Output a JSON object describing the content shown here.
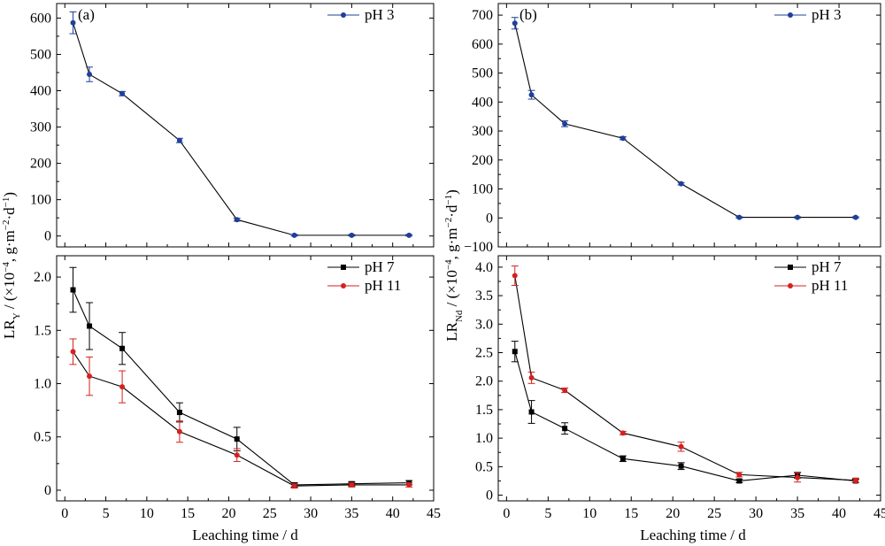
{
  "chart_data": [
    {
      "panel": "(a)",
      "type": "line",
      "x": [
        1,
        3,
        7,
        14,
        21,
        28,
        35,
        42
      ],
      "ylim": [
        -30,
        640
      ],
      "yticks": [
        0,
        100,
        200,
        300,
        400,
        500,
        600
      ],
      "ytick_labels": [
        "0",
        "100",
        "200",
        "300",
        "400",
        "500",
        "600"
      ],
      "series": [
        {
          "name": "pH 3",
          "color": "#1f3f99",
          "marker": "circle",
          "values": [
            587,
            445,
            392,
            263,
            45,
            2,
            2,
            2
          ],
          "errors": [
            30,
            20,
            6,
            6,
            4,
            2,
            2,
            2
          ]
        }
      ],
      "legend_position": "top-right"
    },
    {
      "panel": "(b)",
      "type": "line",
      "x": [
        1,
        3,
        7,
        14,
        21,
        28,
        35,
        42
      ],
      "ylim": [
        -100,
        740
      ],
      "yticks": [
        -100,
        0,
        100,
        200,
        300,
        400,
        500,
        600,
        700
      ],
      "ytick_labels": [
        "−100",
        "0",
        "100",
        "200",
        "300",
        "400",
        "500",
        "600",
        "700"
      ],
      "series": [
        {
          "name": "pH 3",
          "color": "#1f3f99",
          "marker": "circle",
          "values": [
            672,
            425,
            325,
            275,
            118,
            2,
            2,
            2
          ],
          "errors": [
            20,
            15,
            10,
            5,
            4,
            2,
            2,
            2
          ]
        }
      ],
      "legend_position": "top-right"
    },
    {
      "type": "line",
      "x": [
        1,
        3,
        7,
        14,
        21,
        28,
        35,
        42
      ],
      "ylim": [
        -0.1,
        2.2
      ],
      "yticks": [
        0,
        0.5,
        1.0,
        1.5,
        2.0
      ],
      "ytick_labels": [
        "0",
        "0.5",
        "1.0",
        "1.5",
        "2.0"
      ],
      "series": [
        {
          "name": "pH 7",
          "color": "#000000",
          "marker": "square",
          "values": [
            1.88,
            1.54,
            1.33,
            0.73,
            0.48,
            0.05,
            0.06,
            0.07
          ],
          "errors": [
            0.21,
            0.22,
            0.15,
            0.09,
            0.11,
            0.02,
            0.02,
            0.02
          ]
        },
        {
          "name": "pH 11",
          "color": "#d62020",
          "marker": "circle",
          "values": [
            1.3,
            1.07,
            0.97,
            0.55,
            0.33,
            0.04,
            0.05,
            0.05
          ],
          "errors": [
            0.12,
            0.18,
            0.15,
            0.1,
            0.06,
            0.02,
            0.02,
            0.02
          ]
        }
      ],
      "legend_position": "top-right"
    },
    {
      "type": "line",
      "x": [
        1,
        3,
        7,
        14,
        21,
        28,
        35,
        42
      ],
      "ylim": [
        -0.1,
        4.2
      ],
      "yticks": [
        0,
        0.5,
        1.0,
        1.5,
        2.0,
        2.5,
        3.0,
        3.5,
        4.0
      ],
      "ytick_labels": [
        "0",
        "0.5",
        "1.0",
        "1.5",
        "2.0",
        "2.5",
        "3.0",
        "3.5",
        "4.0"
      ],
      "series": [
        {
          "name": "pH 7",
          "color": "#000000",
          "marker": "square",
          "values": [
            2.52,
            1.46,
            1.17,
            0.64,
            0.51,
            0.25,
            0.35,
            0.25
          ],
          "errors": [
            0.18,
            0.2,
            0.1,
            0.05,
            0.06,
            0.03,
            0.05,
            0.03
          ]
        },
        {
          "name": "pH 11",
          "color": "#d62020",
          "marker": "circle",
          "values": [
            3.85,
            2.06,
            1.84,
            1.09,
            0.85,
            0.36,
            0.31,
            0.26
          ],
          "errors": [
            0.17,
            0.1,
            0.04,
            0.03,
            0.08,
            0.04,
            0.08,
            0.04
          ]
        }
      ],
      "legend_position": "top-right"
    }
  ],
  "xaxis": {
    "xlim": [
      -1,
      45
    ],
    "ticks": [
      0,
      5,
      10,
      15,
      20,
      25,
      30,
      35,
      40,
      45
    ],
    "tick_labels": [
      "0",
      "5",
      "10",
      "15",
      "20",
      "25",
      "30",
      "35",
      "40",
      "45"
    ],
    "label": "Leaching time / d"
  },
  "ylabels": {
    "left": {
      "main": "LR",
      "sub": "Y",
      "rest": " / (×10",
      "sup1": "−4",
      "rest2": ", g·m",
      "sup2": "−2",
      "rest3": "·d",
      "sup3": "−1",
      "end": ")"
    },
    "right": {
      "main": "LR",
      "sub": "Nd",
      "rest": " / (×10",
      "sup1": "−4",
      "rest2": ", g·m",
      "sup2": "−2",
      "rest3": "·d",
      "sup3": "−1",
      "end": ")"
    }
  }
}
